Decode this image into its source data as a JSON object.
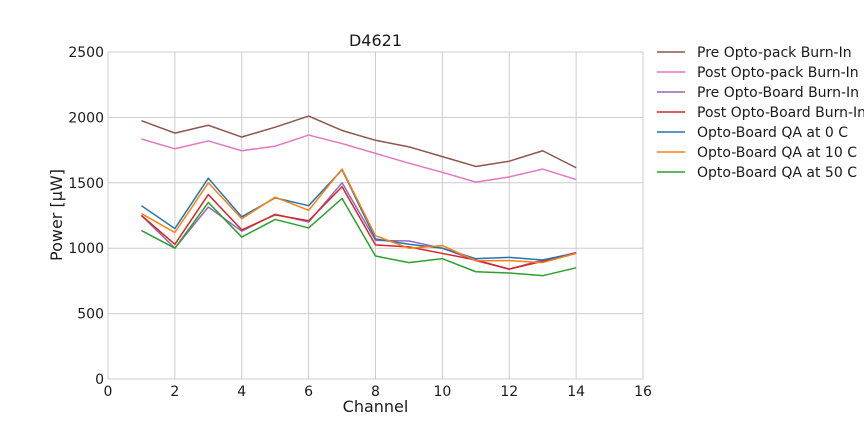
{
  "chart_data": {
    "type": "line",
    "title": "D4621",
    "xlabel": "Channel",
    "ylabel": "Power [μW]",
    "xlim": [
      0,
      16
    ],
    "ylim": [
      0,
      2500
    ],
    "xticks": [
      "0",
      "2",
      "4",
      "6",
      "8",
      "10",
      "12",
      "14",
      "16"
    ],
    "yticks": [
      "0",
      "500",
      "1000",
      "1500",
      "2000",
      "2500"
    ],
    "grid": true,
    "legend_position": "outside-right",
    "x": [
      1,
      2,
      3,
      4,
      5,
      6,
      7,
      8,
      9,
      10,
      11,
      12,
      13,
      14
    ],
    "series": [
      {
        "name": "Pre Opto-pack Burn-In",
        "color": "#8c564b",
        "values": [
          1975,
          1880,
          1940,
          1850,
          1925,
          2010,
          1900,
          1825,
          1775,
          1700,
          1625,
          1665,
          1745,
          1615
        ]
      },
      {
        "name": "Post Opto-pack Burn-In",
        "color": "#e377c2",
        "values": [
          1835,
          1760,
          1820,
          1745,
          1780,
          1865,
          1800,
          1725,
          1650,
          1580,
          1505,
          1545,
          1605,
          1525
        ]
      },
      {
        "name": "Pre Opto-Board Burn-In",
        "color": "#9467bd",
        "values": [
          1250,
          1000,
          1315,
          1130,
          1260,
          1200,
          1500,
          1060,
          1055,
          1000,
          905,
          840,
          910,
          965
        ]
      },
      {
        "name": "Post Opto-Board Burn-In",
        "color": "#d62728",
        "values": [
          1250,
          1030,
          1410,
          1140,
          1255,
          1210,
          1470,
          1025,
          1010,
          960,
          910,
          840,
          900,
          965
        ]
      },
      {
        "name": "Opto-Board QA at 0 C",
        "color": "#1f77b4",
        "values": [
          1325,
          1150,
          1535,
          1240,
          1385,
          1325,
          1600,
          1070,
          1030,
          1000,
          920,
          930,
          910,
          960
        ]
      },
      {
        "name": "Opto-Board QA at 10 C",
        "color": "#ff7f0e",
        "values": [
          1265,
          1120,
          1500,
          1225,
          1390,
          1290,
          1605,
          1095,
          1000,
          1020,
          905,
          905,
          890,
          960
        ]
      },
      {
        "name": "Opto-Board QA at 50 C",
        "color": "#2ca02c",
        "values": [
          1135,
          1000,
          1350,
          1085,
          1220,
          1155,
          1380,
          940,
          890,
          920,
          820,
          810,
          790,
          850
        ]
      }
    ]
  }
}
